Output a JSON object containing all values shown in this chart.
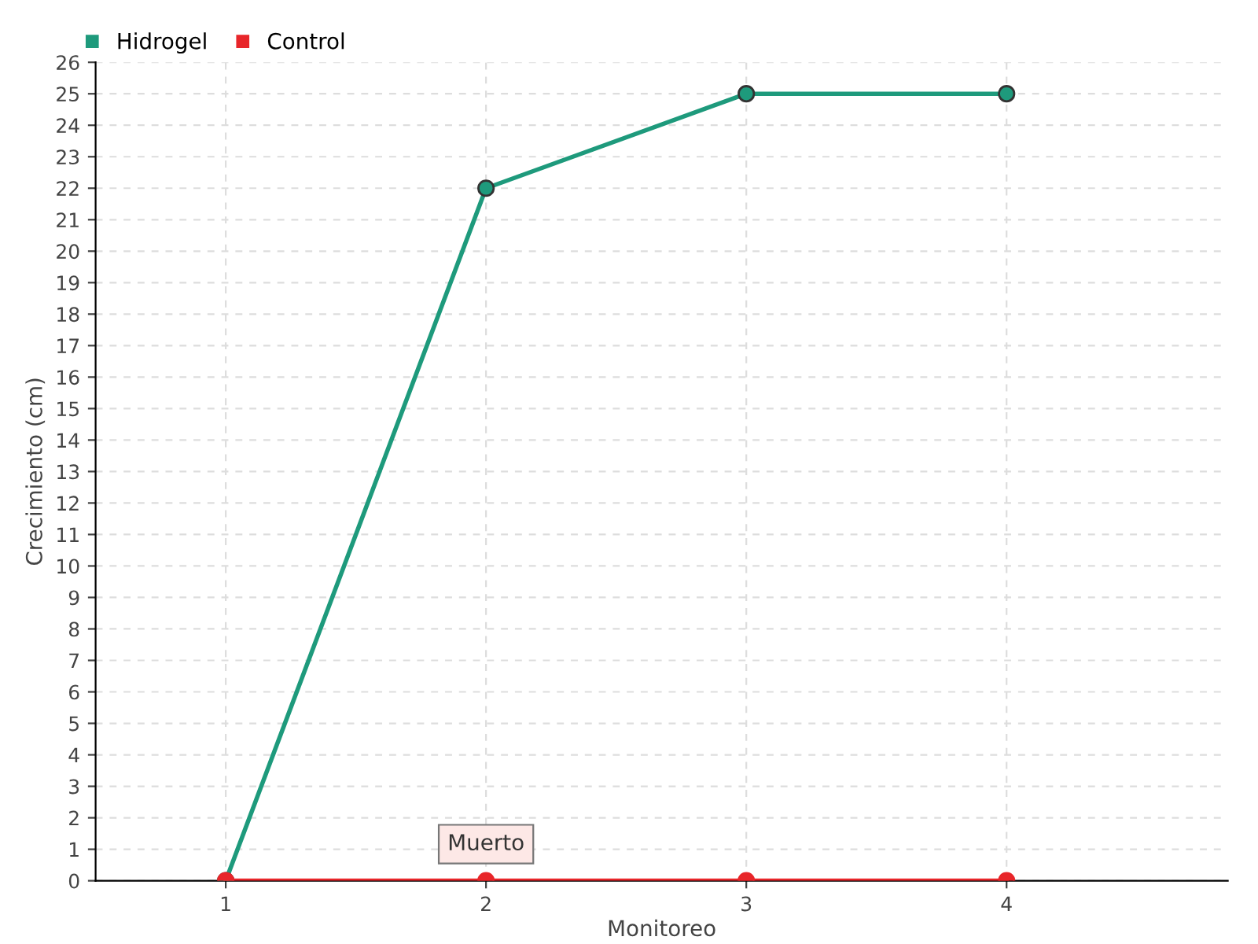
{
  "chart_data": {
    "type": "line",
    "xlabel": "Monitoreo",
    "ylabel": "Crecimiento (cm)",
    "categories": [
      "1",
      "2",
      "3",
      "4"
    ],
    "series": [
      {
        "name": "Hidrogel",
        "color": "#1e9a7c",
        "values": [
          0,
          22,
          25,
          25
        ]
      },
      {
        "name": "Control",
        "color": "#e8262a",
        "values": [
          0,
          0,
          0,
          0
        ]
      }
    ],
    "ylim": [
      0,
      26
    ],
    "yticks": [
      0,
      1,
      2,
      3,
      4,
      5,
      6,
      7,
      8,
      9,
      10,
      11,
      12,
      13,
      14,
      15,
      16,
      17,
      18,
      19,
      20,
      21,
      22,
      23,
      24,
      25,
      26
    ],
    "annotations": [
      {
        "text": "Muerto",
        "x": "2",
        "y": 0
      }
    ],
    "grid": true,
    "legend": "top left",
    "marker": "circle",
    "line_style": "solid"
  }
}
